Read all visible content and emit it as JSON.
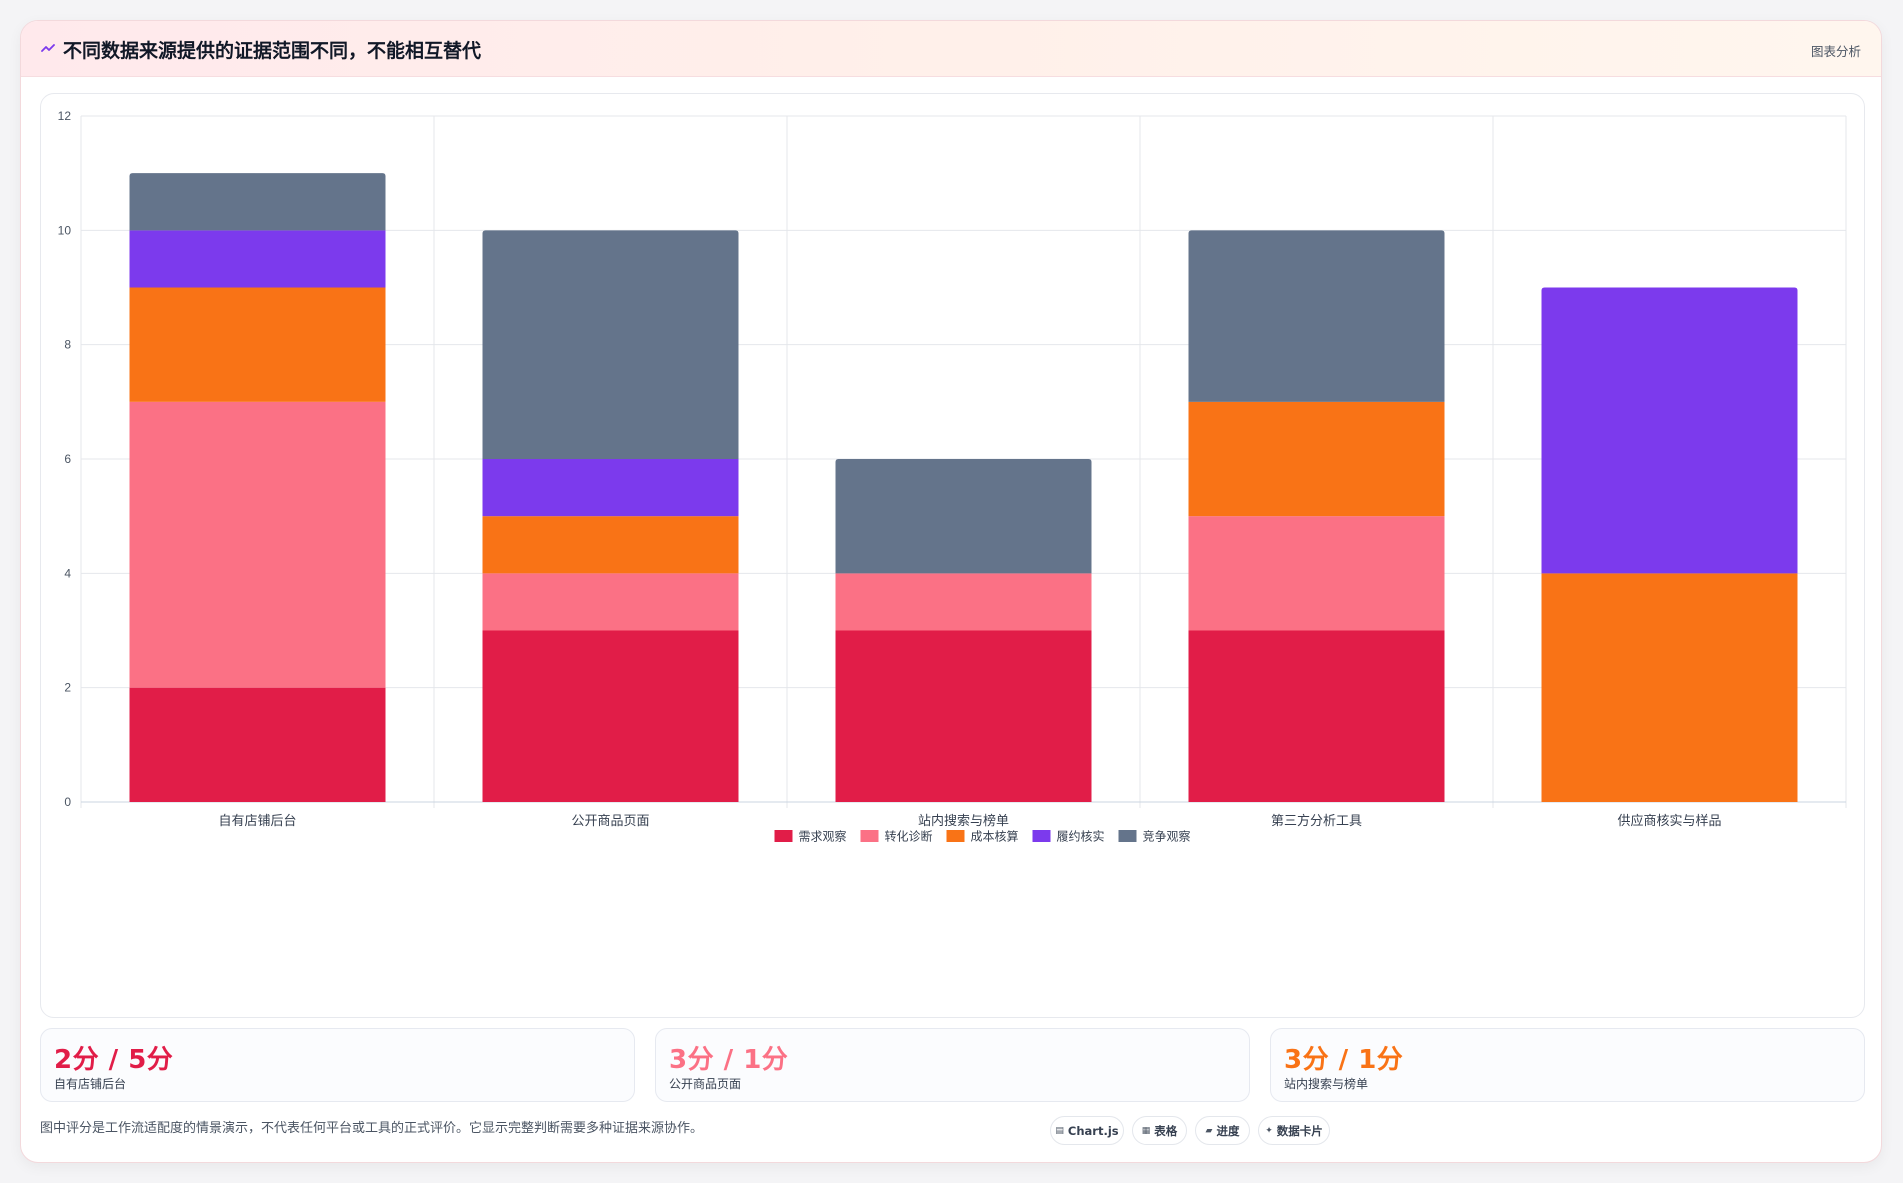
{
  "header": {
    "icon": "sparkline-icon",
    "title": "不同数据来源提供的证据范围不同，不能相互替代",
    "badge": "图表分析"
  },
  "chart_data": {
    "type": "bar",
    "stacked": true,
    "categories": [
      "自有店铺后台",
      "公开商品页面",
      "站内搜索与榜单",
      "第三方分析工具",
      "供应商核实与样品"
    ],
    "series": [
      {
        "name": "需求观察",
        "color": "#e11d48",
        "values": [
          2,
          3,
          3,
          3,
          0
        ]
      },
      {
        "name": "转化诊断",
        "color": "#fb7185",
        "values": [
          5,
          1,
          1,
          2,
          0
        ]
      },
      {
        "name": "成本核算",
        "color": "#f97316",
        "values": [
          2,
          1,
          0,
          2,
          4
        ]
      },
      {
        "name": "履约核实",
        "color": "#7c3aed",
        "values": [
          1,
          1,
          0,
          0,
          5
        ]
      },
      {
        "name": "竞争观察",
        "color": "#64748b",
        "values": [
          1,
          4,
          2,
          3,
          0
        ]
      }
    ],
    "ylim": [
      0,
      12
    ],
    "yticks": [
      0,
      2,
      4,
      6,
      8,
      10,
      12
    ],
    "grid": true,
    "legend_position": "bottom"
  },
  "stats": [
    {
      "value": "2分 / 5分",
      "label": "自有店铺后台",
      "color": "#e11d48"
    },
    {
      "value": "3分 / 1分",
      "label": "公开商品页面",
      "color": "#fb7185"
    },
    {
      "value": "3分 / 1分",
      "label": "站内搜索与榜单",
      "color": "#f97316"
    }
  ],
  "footer": {
    "note": "图中评分是工作流适配度的情景演示，不代表任何平台或工具的正式评价。它显示完整判断需要多种证据来源协作。",
    "pills": [
      {
        "icon": "chart-icon",
        "glyph": "▤",
        "label": "Chart.js"
      },
      {
        "icon": "table-icon",
        "glyph": "▦",
        "label": "表格"
      },
      {
        "icon": "progress-icon",
        "glyph": "▰",
        "label": "进度"
      },
      {
        "icon": "card-icon",
        "glyph": "✦",
        "label": "数据卡片"
      }
    ]
  }
}
